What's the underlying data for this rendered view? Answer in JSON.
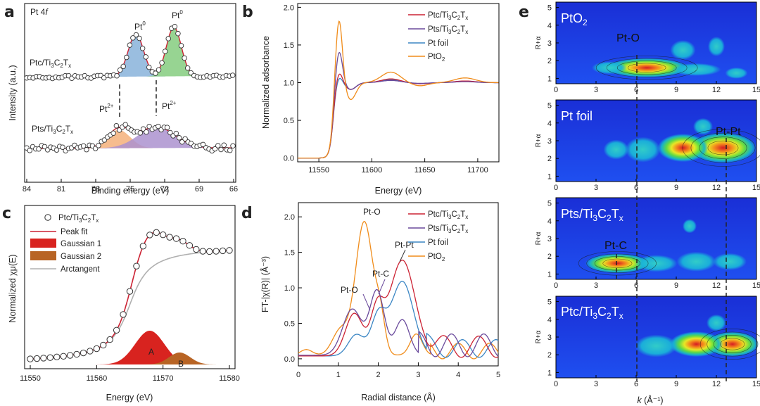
{
  "colors": {
    "ptc": "#cc2233",
    "pts": "#6a4a9c",
    "ptfoil": "#3b86c4",
    "pto2": "#f08c1a",
    "peak_blue": "#8fb7dd",
    "peak_green": "#8ccf86",
    "peak_orange": "#f5b07a",
    "peak_purple": "#ab92cf",
    "g1": "#d8231f",
    "g2": "#b86424",
    "arctan": "#b0b0b0"
  },
  "chart_data": [
    {
      "type": "line",
      "panel": "a",
      "title": "Pt 4f",
      "xlabel": "Binding energy (eV)",
      "ylabel": "Intensity (a.u.)",
      "xlim": [
        84,
        66
      ],
      "xticks": [
        "84",
        "81",
        "78",
        "75",
        "72",
        "69",
        "66"
      ],
      "samples": [
        "Ptc/Ti3C2Tx",
        "Pts/Ti3C2Tx"
      ],
      "peaks": [
        {
          "sample": "Ptc/Ti3C2Tx",
          "center": 74.5,
          "label": "Pt0",
          "fill": "blue"
        },
        {
          "sample": "Ptc/Ti3C2Tx",
          "center": 71.2,
          "label": "Pt0",
          "fill": "green"
        },
        {
          "sample": "Pts/Ti3C2Tx",
          "center": 76.0,
          "label": "Pt2+",
          "fill": "orange"
        },
        {
          "sample": "Pts/Ti3C2Tx",
          "center": 72.7,
          "label": "Pt2+",
          "fill": "purple"
        }
      ],
      "dashed_lines": [
        76.0,
        72.7
      ]
    },
    {
      "type": "line",
      "panel": "b",
      "xlabel": "Energy (eV)",
      "ylabel": "Normalized adsorbance",
      "xlim": [
        11530,
        11720
      ],
      "ylim": [
        -0.05,
        2.05
      ],
      "xticks": [
        11550,
        11600,
        11650,
        11700
      ],
      "yticks": [
        0.0,
        0.5,
        1.0,
        1.5,
        2.0
      ],
      "series": [
        {
          "name": "Ptc/Ti3C2Tx",
          "white_line": 1.16
        },
        {
          "name": "Pts/Ti3C2Tx",
          "white_line": 1.45
        },
        {
          "name": "Pt foil",
          "white_line": 1.1
        },
        {
          "name": "PtO2",
          "white_line": 1.88
        }
      ]
    },
    {
      "type": "line",
      "panel": "c",
      "xlabel": "Energy (eV)",
      "ylabel": "Normalized χμ(E)",
      "xlim": [
        11550,
        11580
      ],
      "xticks": [
        11550,
        11560,
        11570,
        11580
      ],
      "legend": [
        "Ptc/Ti3C2Tx",
        "Peak fit",
        "Gaussian 1",
        "Gaussian 2",
        "Arctangent"
      ],
      "components": [
        {
          "name": "Gaussian 1",
          "label": "A",
          "center": 11568
        },
        {
          "name": "Gaussian 2",
          "label": "B",
          "center": 11572.5
        }
      ]
    },
    {
      "type": "line",
      "panel": "d",
      "xlabel": "Radial distance (Å)",
      "ylabel": "FT-|χ(R)| (Å⁻³)",
      "xlim": [
        0,
        5
      ],
      "ylim": [
        -0.1,
        2.2
      ],
      "xticks": [
        0,
        1,
        2,
        3,
        4,
        5
      ],
      "yticks": [
        0.0,
        0.5,
        1.0,
        1.5,
        2.0
      ],
      "series": [
        {
          "name": "Ptc/Ti3C2Tx",
          "peak_R": 2.58,
          "peak_value": 1.35
        },
        {
          "name": "Pts/Ti3C2Tx",
          "peak_R": 1.97,
          "peak_value": 0.9
        },
        {
          "name": "Pt foil",
          "peak_R": 2.6,
          "peak_value": 1.05
        },
        {
          "name": "PtO2",
          "peak_R": 1.65,
          "peak_value": 1.88
        }
      ],
      "annotations": [
        "Pt-O",
        "Pt-O",
        "Pt-C",
        "Pt-Pt"
      ]
    },
    {
      "type": "heatmap",
      "panel": "e",
      "xlabel": "k (Å⁻¹)",
      "ylabel": "R+α",
      "xlim": [
        0,
        15
      ],
      "xticks": [
        0,
        3,
        6,
        9,
        12,
        15
      ],
      "maps": [
        {
          "title": "PtO2",
          "yticks": [
            1,
            2,
            3,
            4,
            5
          ],
          "annotation": "Pt-O"
        },
        {
          "title": "Pt foil",
          "yticks": [
            1,
            2,
            3,
            4,
            5
          ],
          "annotation": "Pt-Pt"
        },
        {
          "title": "Pts/Ti3C2Tx",
          "yticks": [
            1,
            2,
            3,
            4,
            5
          ],
          "annotation": "Pt-C"
        },
        {
          "title": "Ptc/Ti3C2Tx",
          "yticks": [
            1,
            2,
            3,
            4,
            5
          ],
          "annotation": ""
        }
      ],
      "dashed_k": [
        6.0,
        12.8
      ]
    }
  ],
  "text": {
    "a": {
      "panel": "a",
      "title_pt": "Pt 4",
      "title_f": "f",
      "xlabel": "Binding energy (eV)",
      "ylabel": "Intensity (a.u.)",
      "ptc": "Ptc/Ti",
      "pts": "Pts/Ti",
      "sub3": "3",
      "C": "C",
      "sub2": "2",
      "T": "T",
      "subx": "x",
      "pt": "Pt",
      "sup0": "0",
      "sup2": "2+",
      "ticks": [
        "84",
        "81",
        "78",
        "75",
        "72",
        "69",
        "66"
      ]
    },
    "b": {
      "panel": "b",
      "xlabel": "Energy (eV)",
      "ylabel": "Normalized adsorbance",
      "xticks": [
        "11550",
        "11600",
        "11650",
        "11700"
      ],
      "yticks": [
        "0.0",
        "0.5",
        "1.0",
        "1.5",
        "2.0"
      ],
      "leg_ptc": "Ptc/Ti",
      "leg_pts": "Pts/Ti",
      "leg_foil": "Pt foil",
      "leg_pto2": "PtO",
      "sub3": "3",
      "C": "C",
      "sub2": "2",
      "T": "T",
      "subx": "x"
    },
    "c": {
      "panel": "c",
      "xlabel": "Energy (eV)",
      "ylabel": "Normalized χμ(E)",
      "xticks": [
        "11550",
        "11560",
        "11570",
        "11580"
      ],
      "leg_sample": "Ptc/Ti",
      "leg_fit": "Peak fit",
      "leg_g1": "Gaussian 1",
      "leg_g2": "Gaussian 2",
      "leg_arc": "Arctangent",
      "A": "A",
      "B": "B",
      "sub3": "3",
      "C": "C",
      "sub2": "2",
      "T": "T",
      "subx": "x"
    },
    "d": {
      "panel": "d",
      "xlabel": "Radial distance (Å)",
      "ylabel": "FT-|χ(R)| (Å⁻³)",
      "xticks": [
        "0",
        "1",
        "2",
        "3",
        "4",
        "5"
      ],
      "yticks": [
        "0.0",
        "0.5",
        "1.0",
        "1.5",
        "2.0"
      ],
      "leg_ptc": "Ptc/Ti",
      "leg_pts": "Pts/Ti",
      "leg_foil": "Pt foil",
      "leg_pto2": "PtO",
      "sub3": "3",
      "C": "C",
      "sub2": "2",
      "T": "T",
      "subx": "x",
      "ptO": "Pt-O",
      "ptC": "Pt-C",
      "ptPt": "Pt-Pt"
    },
    "e": {
      "panel": "e",
      "xlabel_k": "k",
      "xlabel_unit": " (Å⁻¹)",
      "ylabel": "R+α",
      "xticks": [
        "0",
        "3",
        "6",
        "9",
        "12",
        "15"
      ],
      "yticks": [
        "1",
        "2",
        "3",
        "4",
        "5"
      ],
      "t1a": "PtO",
      "t1b": "2",
      "t2": "Pt foil",
      "t3": "Pts/Ti",
      "t4": "Ptc/Ti",
      "sub3": "3",
      "C": "C",
      "sub2": "2",
      "T": "T",
      "subx": "x",
      "ptO": "Pt-O",
      "ptPt": "Pt-Pt",
      "ptC": "Pt-C"
    }
  }
}
